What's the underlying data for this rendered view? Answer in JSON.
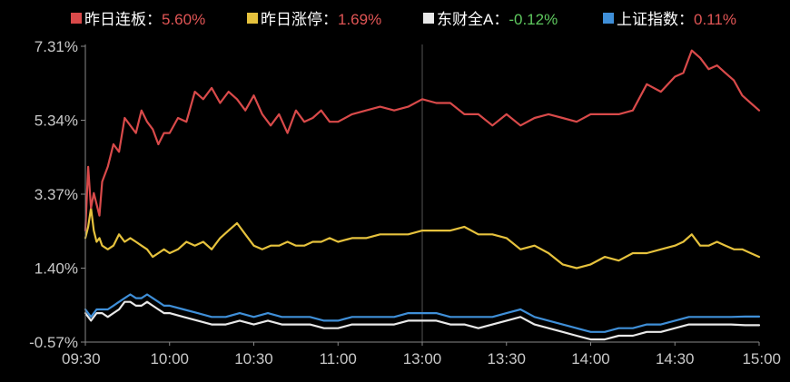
{
  "chart_data": {
    "type": "line",
    "x_ticks": [
      "09:30",
      "10:00",
      "10:30",
      "11:00",
      "13:00",
      "13:30",
      "14:00",
      "14:30",
      "15:00"
    ],
    "y_ticks": [
      "7.31%",
      "5.34%",
      "3.37%",
      "1.40%",
      "-0.57%"
    ],
    "ylim": [
      -0.57,
      7.31
    ],
    "grid": "vertical line at 13:00",
    "legend_position": "top",
    "legend_separator": "：",
    "colors": {
      "positive_value": "#e05555",
      "negative_value": "#5ec85e",
      "axis": "#888888"
    },
    "series": [
      {
        "name": "昨日连板",
        "value_text": "5.60%",
        "value_sign": "positive",
        "color": "#d94a4a",
        "x": [
          "09:30",
          "09:31",
          "09:32",
          "09:33",
          "09:34",
          "09:35",
          "09:36",
          "09:38",
          "09:40",
          "09:42",
          "09:44",
          "09:46",
          "09:48",
          "09:50",
          "09:52",
          "09:54",
          "09:56",
          "09:58",
          "10:00",
          "10:03",
          "10:06",
          "10:09",
          "10:12",
          "10:15",
          "10:18",
          "10:21",
          "10:24",
          "10:27",
          "10:30",
          "10:33",
          "10:36",
          "10:39",
          "10:42",
          "10:45",
          "10:48",
          "10:51",
          "10:54",
          "10:57",
          "11:00",
          "11:05",
          "11:10",
          "11:15",
          "11:20",
          "11:25",
          "11:30",
          "13:05",
          "13:10",
          "13:15",
          "13:20",
          "13:25",
          "13:30",
          "13:35",
          "13:40",
          "13:45",
          "13:50",
          "13:55",
          "14:00",
          "14:05",
          "14:10",
          "14:15",
          "14:20",
          "14:25",
          "14:30",
          "14:33",
          "14:36",
          "14:39",
          "14:42",
          "14:45",
          "14:48",
          "14:51",
          "14:54",
          "14:57",
          "15:00"
        ],
        "values": [
          2.4,
          4.1,
          3.0,
          3.4,
          3.1,
          2.8,
          3.7,
          4.1,
          4.7,
          4.5,
          5.4,
          5.2,
          5.0,
          5.6,
          5.3,
          5.1,
          4.7,
          5.0,
          5.0,
          5.4,
          5.3,
          6.1,
          5.9,
          6.2,
          5.8,
          6.1,
          5.9,
          5.6,
          6.0,
          5.5,
          5.2,
          5.5,
          5.0,
          5.6,
          5.3,
          5.4,
          5.6,
          5.3,
          5.3,
          5.5,
          5.6,
          5.7,
          5.6,
          5.7,
          5.9,
          5.8,
          5.8,
          5.5,
          5.5,
          5.2,
          5.5,
          5.2,
          5.4,
          5.5,
          5.4,
          5.3,
          5.5,
          5.5,
          5.5,
          5.6,
          6.3,
          6.1,
          6.5,
          6.6,
          7.2,
          7.0,
          6.7,
          6.8,
          6.6,
          6.4,
          6.0,
          5.8,
          5.6
        ]
      },
      {
        "name": "昨日涨停",
        "value_text": "1.69%",
        "value_sign": "positive",
        "color": "#e6c23d",
        "x": [
          "09:30",
          "09:31",
          "09:32",
          "09:33",
          "09:34",
          "09:35",
          "09:36",
          "09:38",
          "09:40",
          "09:42",
          "09:44",
          "09:46",
          "09:48",
          "09:50",
          "09:52",
          "09:54",
          "09:56",
          "09:58",
          "10:00",
          "10:03",
          "10:06",
          "10:09",
          "10:12",
          "10:15",
          "10:18",
          "10:21",
          "10:24",
          "10:27",
          "10:30",
          "10:33",
          "10:36",
          "10:39",
          "10:42",
          "10:45",
          "10:48",
          "10:51",
          "10:54",
          "10:57",
          "11:00",
          "11:05",
          "11:10",
          "11:15",
          "11:20",
          "11:25",
          "11:30",
          "13:05",
          "13:10",
          "13:15",
          "13:20",
          "13:25",
          "13:30",
          "13:35",
          "13:40",
          "13:45",
          "13:50",
          "13:55",
          "14:00",
          "14:05",
          "14:10",
          "14:15",
          "14:20",
          "14:25",
          "14:30",
          "14:33",
          "14:36",
          "14:39",
          "14:42",
          "14:45",
          "14:48",
          "14:51",
          "14:54",
          "14:57",
          "15:00"
        ],
        "values": [
          2.2,
          2.5,
          3.0,
          2.4,
          2.1,
          2.2,
          2.0,
          1.9,
          2.0,
          2.3,
          2.1,
          2.2,
          2.1,
          2.0,
          1.9,
          1.7,
          1.8,
          1.9,
          1.8,
          1.9,
          2.1,
          2.0,
          2.1,
          1.9,
          2.2,
          2.4,
          2.6,
          2.3,
          2.0,
          1.9,
          2.0,
          2.0,
          2.1,
          2.0,
          2.0,
          2.1,
          2.1,
          2.2,
          2.1,
          2.2,
          2.2,
          2.3,
          2.3,
          2.3,
          2.4,
          2.4,
          2.4,
          2.5,
          2.3,
          2.3,
          2.2,
          1.9,
          2.0,
          1.8,
          1.5,
          1.4,
          1.5,
          1.7,
          1.6,
          1.8,
          1.8,
          1.9,
          2.0,
          2.1,
          2.3,
          2.0,
          2.0,
          2.1,
          2.0,
          1.9,
          1.9,
          1.8,
          1.7
        ]
      },
      {
        "name": "东财全A",
        "value_text": "-0.12%",
        "value_sign": "negative",
        "color": "#e8e8e8",
        "x": [
          "09:30",
          "09:32",
          "09:34",
          "09:36",
          "09:38",
          "09:40",
          "09:42",
          "09:44",
          "09:46",
          "09:48",
          "09:50",
          "09:52",
          "09:54",
          "09:56",
          "09:58",
          "10:00",
          "10:05",
          "10:10",
          "10:15",
          "10:20",
          "10:25",
          "10:30",
          "10:35",
          "10:40",
          "10:45",
          "10:50",
          "10:55",
          "11:00",
          "11:05",
          "11:10",
          "11:15",
          "11:20",
          "11:25",
          "11:30",
          "13:05",
          "13:10",
          "13:15",
          "13:20",
          "13:25",
          "13:30",
          "13:35",
          "13:40",
          "13:45",
          "13:50",
          "13:55",
          "14:00",
          "14:05",
          "14:10",
          "14:15",
          "14:20",
          "14:25",
          "14:30",
          "14:35",
          "14:40",
          "14:45",
          "14:50",
          "14:55",
          "15:00"
        ],
        "values": [
          0.2,
          0.0,
          0.2,
          0.2,
          0.1,
          0.2,
          0.3,
          0.5,
          0.5,
          0.4,
          0.4,
          0.5,
          0.4,
          0.3,
          0.2,
          0.2,
          0.1,
          0.0,
          -0.1,
          -0.1,
          0.0,
          -0.1,
          0.0,
          -0.1,
          -0.1,
          -0.1,
          -0.2,
          -0.2,
          -0.1,
          -0.1,
          -0.1,
          -0.1,
          0.0,
          0.0,
          0.0,
          -0.1,
          -0.1,
          -0.2,
          -0.1,
          0.0,
          0.1,
          -0.1,
          -0.2,
          -0.3,
          -0.4,
          -0.5,
          -0.5,
          -0.4,
          -0.4,
          -0.3,
          -0.3,
          -0.2,
          -0.1,
          -0.1,
          -0.1,
          -0.1,
          -0.12,
          -0.12
        ]
      },
      {
        "name": "上证指数",
        "value_text": "0.11%",
        "value_sign": "positive",
        "color": "#3f8fd8",
        "x": [
          "09:30",
          "09:32",
          "09:34",
          "09:36",
          "09:38",
          "09:40",
          "09:42",
          "09:44",
          "09:46",
          "09:48",
          "09:50",
          "09:52",
          "09:54",
          "09:56",
          "09:58",
          "10:00",
          "10:05",
          "10:10",
          "10:15",
          "10:20",
          "10:25",
          "10:30",
          "10:35",
          "10:40",
          "10:45",
          "10:50",
          "10:55",
          "11:00",
          "11:05",
          "11:10",
          "11:15",
          "11:20",
          "11:25",
          "11:30",
          "13:05",
          "13:10",
          "13:15",
          "13:20",
          "13:25",
          "13:30",
          "13:35",
          "13:40",
          "13:45",
          "13:50",
          "13:55",
          "14:00",
          "14:05",
          "14:10",
          "14:15",
          "14:20",
          "14:25",
          "14:30",
          "14:35",
          "14:40",
          "14:45",
          "14:50",
          "14:55",
          "15:00"
        ],
        "values": [
          0.3,
          0.1,
          0.3,
          0.3,
          0.3,
          0.4,
          0.5,
          0.6,
          0.7,
          0.6,
          0.6,
          0.7,
          0.6,
          0.5,
          0.4,
          0.4,
          0.3,
          0.2,
          0.1,
          0.1,
          0.2,
          0.1,
          0.2,
          0.1,
          0.1,
          0.1,
          0.0,
          0.0,
          0.1,
          0.1,
          0.1,
          0.1,
          0.2,
          0.2,
          0.2,
          0.1,
          0.1,
          0.1,
          0.1,
          0.2,
          0.3,
          0.1,
          0.0,
          -0.1,
          -0.2,
          -0.3,
          -0.3,
          -0.2,
          -0.2,
          -0.1,
          -0.1,
          0.0,
          0.1,
          0.1,
          0.1,
          0.1,
          0.11,
          0.11
        ]
      }
    ]
  }
}
